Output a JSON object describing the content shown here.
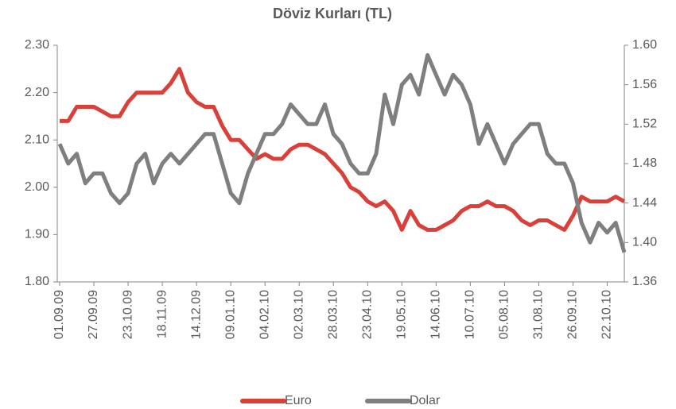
{
  "chart_data": {
    "type": "line",
    "title": "Döviz Kurları (TL)",
    "categories": [
      "01.09.09",
      null,
      null,
      null,
      "27.09.09",
      null,
      null,
      null,
      "23.10.09",
      null,
      null,
      null,
      "18.11.09",
      null,
      null,
      null,
      "14.12.09",
      null,
      null,
      null,
      "09.01.10",
      null,
      null,
      null,
      "04.02.10",
      null,
      null,
      null,
      "02.03.10",
      null,
      null,
      null,
      "28.03.10",
      null,
      null,
      null,
      "23.04.10",
      null,
      null,
      null,
      "19.05.10",
      null,
      null,
      null,
      "14.06.10",
      null,
      null,
      null,
      "10.07.10",
      null,
      null,
      null,
      "05.08.10",
      null,
      null,
      null,
      "31.08.10",
      null,
      null,
      null,
      "26.09.10",
      null,
      null,
      null,
      "22.10.10",
      null,
      null
    ],
    "series": [
      {
        "name": "Euro",
        "color": "#d9403a",
        "axis": "y",
        "values": [
          2.14,
          2.14,
          2.17,
          2.17,
          2.17,
          2.16,
          2.15,
          2.15,
          2.18,
          2.2,
          2.2,
          2.2,
          2.2,
          2.22,
          2.25,
          2.2,
          2.18,
          2.17,
          2.17,
          2.13,
          2.1,
          2.1,
          2.08,
          2.06,
          2.07,
          2.06,
          2.06,
          2.08,
          2.09,
          2.09,
          2.08,
          2.07,
          2.05,
          2.03,
          2.0,
          1.99,
          1.97,
          1.96,
          1.97,
          1.95,
          1.91,
          1.95,
          1.92,
          1.91,
          1.91,
          1.92,
          1.93,
          1.95,
          1.96,
          1.96,
          1.97,
          1.96,
          1.96,
          1.95,
          1.93,
          1.92,
          1.93,
          1.93,
          1.92,
          1.91,
          1.94,
          1.98,
          1.97,
          1.97,
          1.97,
          1.98,
          1.97
        ]
      },
      {
        "name": "Dolar",
        "color": "#7f7f7f",
        "axis": "y2",
        "values": [
          1.5,
          1.48,
          1.49,
          1.46,
          1.47,
          1.47,
          1.45,
          1.44,
          1.45,
          1.48,
          1.49,
          1.46,
          1.48,
          1.49,
          1.48,
          1.49,
          1.5,
          1.51,
          1.51,
          1.48,
          1.45,
          1.44,
          1.47,
          1.49,
          1.51,
          1.51,
          1.52,
          1.54,
          1.53,
          1.52,
          1.52,
          1.54,
          1.51,
          1.5,
          1.48,
          1.47,
          1.47,
          1.49,
          1.55,
          1.52,
          1.56,
          1.57,
          1.55,
          1.59,
          1.57,
          1.55,
          1.57,
          1.56,
          1.54,
          1.5,
          1.52,
          1.5,
          1.48,
          1.5,
          1.51,
          1.52,
          1.52,
          1.49,
          1.48,
          1.48,
          1.46,
          1.42,
          1.4,
          1.42,
          1.41,
          1.42,
          1.39
        ]
      }
    ],
    "ylim": [
      1.8,
      2.3
    ],
    "yticks": [
      {
        "value": 1.8,
        "label": "1.80"
      },
      {
        "value": 1.9,
        "label": "1.90"
      },
      {
        "value": 2.0,
        "label": "2.00"
      },
      {
        "value": 2.1,
        "label": "2.10"
      },
      {
        "value": 2.2,
        "label": "2.20"
      },
      {
        "value": 2.3,
        "label": "2.30"
      }
    ],
    "y2lim": [
      1.36,
      1.6
    ],
    "y2ticks": [
      1.36,
      {
        "value": 1.4,
        "label": "1.40"
      },
      1.44,
      1.48,
      1.52,
      1.56,
      {
        "value": 1.6,
        "label": "1.60"
      }
    ],
    "legend": "bottom",
    "grid": false
  }
}
